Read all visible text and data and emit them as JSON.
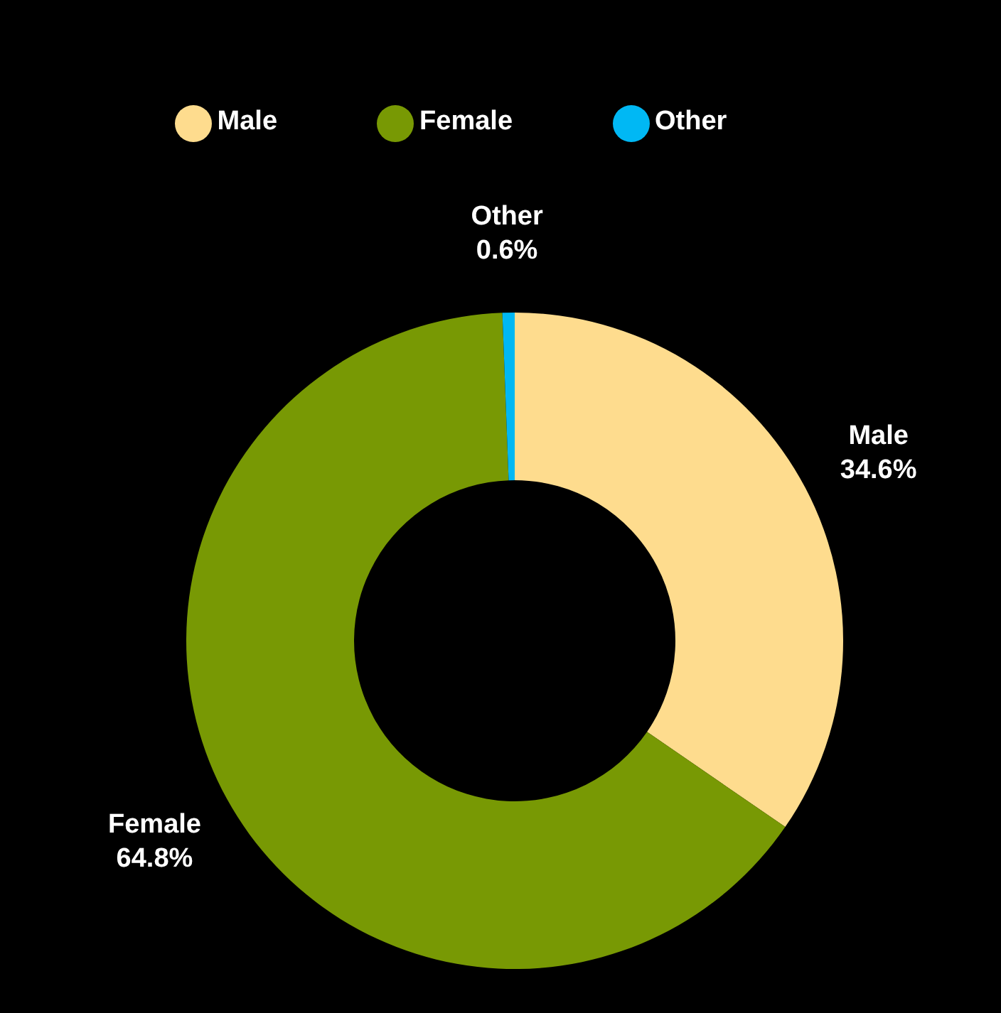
{
  "chart_data": {
    "type": "donut",
    "categories": [
      "Male",
      "Female",
      "Other"
    ],
    "values": [
      34.6,
      64.8,
      0.6
    ],
    "colors": [
      "#fedc8e",
      "#789904",
      "#00b8f4"
    ],
    "value_labels": [
      "34.6%",
      "64.8%",
      "0.6%"
    ],
    "legend": "top"
  }
}
